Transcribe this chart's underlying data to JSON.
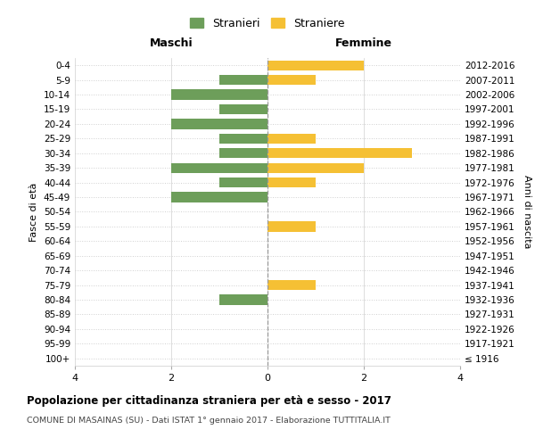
{
  "age_groups": [
    "0-4",
    "5-9",
    "10-14",
    "15-19",
    "20-24",
    "25-29",
    "30-34",
    "35-39",
    "40-44",
    "45-49",
    "50-54",
    "55-59",
    "60-64",
    "65-69",
    "70-74",
    "75-79",
    "80-84",
    "85-89",
    "90-94",
    "95-99",
    "100+"
  ],
  "birth_years": [
    "2012-2016",
    "2007-2011",
    "2002-2006",
    "1997-2001",
    "1992-1996",
    "1987-1991",
    "1982-1986",
    "1977-1981",
    "1972-1976",
    "1967-1971",
    "1962-1966",
    "1957-1961",
    "1952-1956",
    "1947-1951",
    "1942-1946",
    "1937-1941",
    "1932-1936",
    "1927-1931",
    "1922-1926",
    "1917-1921",
    "≤ 1916"
  ],
  "maschi": [
    0,
    1,
    2,
    1,
    2,
    1,
    1,
    2,
    1,
    2,
    0,
    0,
    0,
    0,
    0,
    0,
    1,
    0,
    0,
    0,
    0
  ],
  "femmine": [
    2,
    1,
    0,
    0,
    0,
    1,
    3,
    2,
    1,
    0,
    0,
    1,
    0,
    0,
    0,
    1,
    0,
    0,
    0,
    0,
    0
  ],
  "maschi_color": "#6d9e5a",
  "femmine_color": "#f5c034",
  "title": "Popolazione per cittadinanza straniera per età e sesso - 2017",
  "subtitle": "COMUNE DI MASAINAS (SU) - Dati ISTAT 1° gennaio 2017 - Elaborazione TUTTITALIA.IT",
  "ylabel_left": "Fasce di età",
  "ylabel_right": "Anni di nascita",
  "legend_maschi": "Stranieri",
  "legend_femmine": "Straniere",
  "xlim": 4,
  "background_color": "#ffffff",
  "grid_color": "#d0d0d0",
  "maschi_header": "Maschi",
  "femmine_header": "Femmine"
}
